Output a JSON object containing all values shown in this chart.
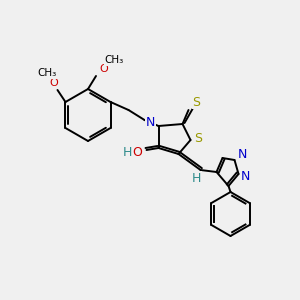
{
  "background_color": "#f0f0f0",
  "line_color": "#000000",
  "atom_colors": {
    "N": "#0000cc",
    "O": "#cc0000",
    "S": "#999900",
    "H": "#2e8b8b",
    "C": "#000000"
  },
  "figsize": [
    3.0,
    3.0
  ],
  "dpi": 100
}
